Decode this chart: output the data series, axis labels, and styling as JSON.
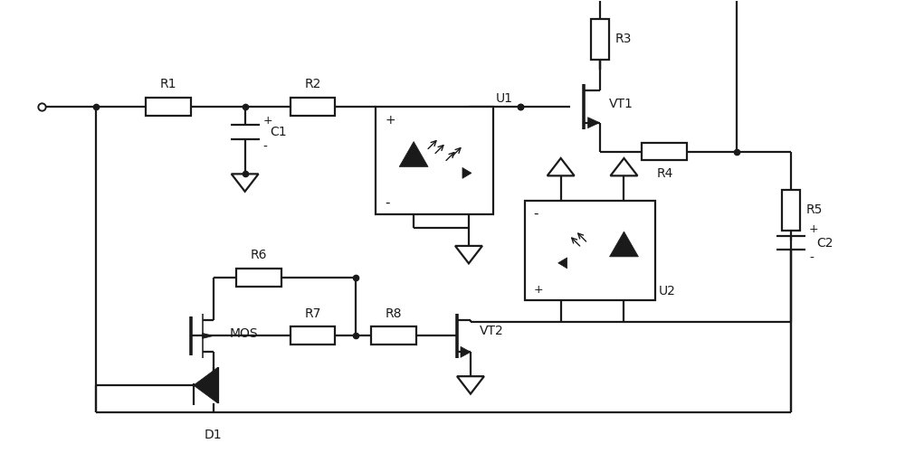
{
  "bg_color": "#ffffff",
  "line_color": "#1a1a1a",
  "lw": 1.6,
  "fig_w": 10.0,
  "fig_h": 5.22,
  "xlim": [
    0,
    100
  ],
  "ylim": [
    0,
    52.2
  ]
}
